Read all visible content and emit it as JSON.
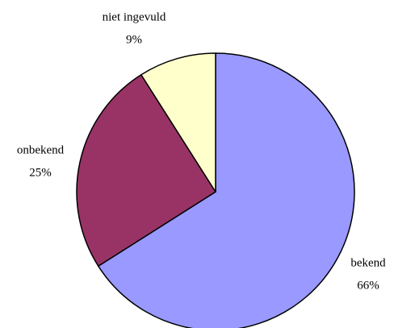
{
  "chart_data": {
    "type": "pie",
    "categories": [
      "bekend",
      "onbekend",
      "niet ingevuld"
    ],
    "values": [
      66,
      25,
      9
    ],
    "value_labels": [
      "66%",
      "25%",
      "9%"
    ],
    "colors": [
      "#9999ff",
      "#993366",
      "#ffffcc"
    ]
  }
}
